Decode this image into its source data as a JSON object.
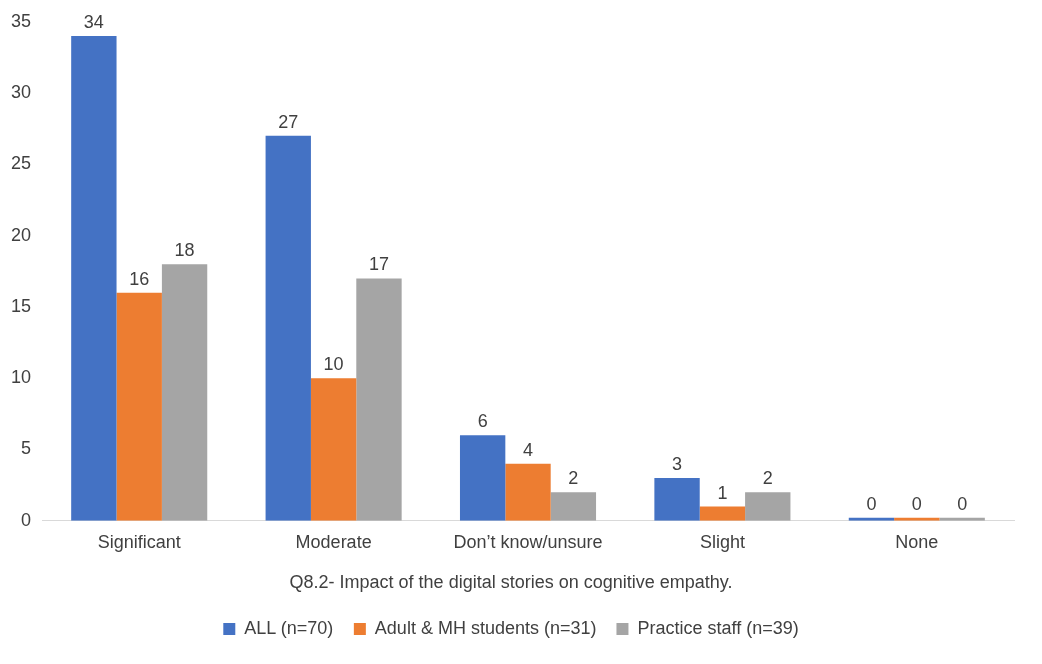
{
  "chart_data": {
    "type": "bar",
    "title": "Q8.2- Impact of the digital stories on cognitive empathy.",
    "categories": [
      "Significant",
      "Moderate",
      "Don’t know/unsure",
      "Slight",
      "None"
    ],
    "series": [
      {
        "name": "ALL (n=70)",
        "color": "#4472c4",
        "values": [
          34,
          27,
          6,
          3,
          0
        ]
      },
      {
        "name": "Adult & MH students (n=31)",
        "color": "#ed7d31",
        "values": [
          16,
          10,
          4,
          1,
          0
        ]
      },
      {
        "name": "Practice staff (n=39)",
        "color": "#a5a5a5",
        "values": [
          18,
          17,
          2,
          2,
          0
        ]
      }
    ],
    "ylim": [
      0,
      35
    ],
    "yticks": [
      0,
      5,
      10,
      15,
      20,
      25,
      30,
      35
    ],
    "grid": false,
    "legend": "bottom",
    "data_labels": true
  }
}
